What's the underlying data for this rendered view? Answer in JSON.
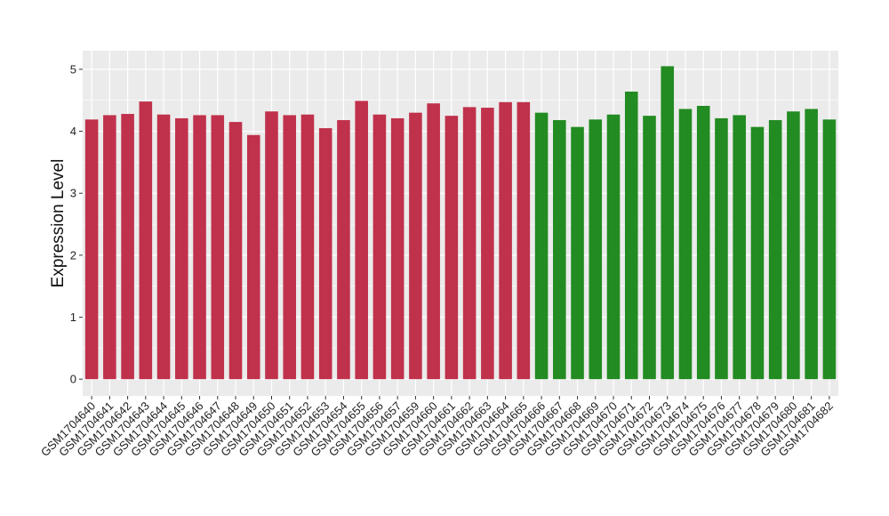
{
  "chart_data": {
    "type": "bar",
    "title": "",
    "xlabel": "",
    "ylabel": "Expression Level",
    "ylim": [
      -0.27,
      5.3
    ],
    "yticks": [
      0,
      1,
      2,
      3,
      4,
      5
    ],
    "grid": true,
    "legend": "none",
    "colors": {
      "panel": "#ebebeb",
      "grid": "#ffffff",
      "group_a": "#c0314b",
      "group_b": "#228b22"
    },
    "categories": [
      "GSM1704640",
      "GSM1704641",
      "GSM1704642",
      "GSM1704643",
      "GSM1704644",
      "GSM1704645",
      "GSM1704646",
      "GSM1704647",
      "GSM1704648",
      "GSM1704649",
      "GSM1704650",
      "GSM1704651",
      "GSM1704652",
      "GSM1704653",
      "GSM1704654",
      "GSM1704655",
      "GSM1704656",
      "GSM1704657",
      "GSM1704659",
      "GSM1704660",
      "GSM1704661",
      "GSM1704662",
      "GSM1704663",
      "GSM1704664",
      "GSM1704665",
      "GSM1704666",
      "GSM1704667",
      "GSM1704668",
      "GSM1704669",
      "GSM1704670",
      "GSM1704671",
      "GSM1704672",
      "GSM1704673",
      "GSM1704674",
      "GSM1704675",
      "GSM1704676",
      "GSM1704677",
      "GSM1704678",
      "GSM1704679",
      "GSM1704680",
      "GSM1704681",
      "GSM1704682"
    ],
    "values": [
      4.19,
      4.26,
      4.28,
      4.48,
      4.27,
      4.21,
      4.26,
      4.26,
      4.15,
      3.94,
      4.32,
      4.26,
      4.27,
      4.05,
      4.18,
      4.49,
      4.27,
      4.21,
      4.3,
      4.45,
      4.25,
      4.39,
      4.38,
      4.47,
      4.47,
      4.3,
      4.18,
      4.07,
      4.19,
      4.27,
      4.64,
      4.25,
      5.05,
      4.36,
      4.41,
      4.21,
      4.26,
      4.07,
      4.18,
      4.32,
      4.36,
      4.19
    ],
    "bar_colors": [
      "group_a",
      "group_a",
      "group_a",
      "group_a",
      "group_a",
      "group_a",
      "group_a",
      "group_a",
      "group_a",
      "group_a",
      "group_a",
      "group_a",
      "group_a",
      "group_a",
      "group_a",
      "group_a",
      "group_a",
      "group_a",
      "group_a",
      "group_a",
      "group_a",
      "group_a",
      "group_a",
      "group_a",
      "group_a",
      "group_b",
      "group_b",
      "group_b",
      "group_b",
      "group_b",
      "group_b",
      "group_b",
      "group_b",
      "group_b",
      "group_b",
      "group_b",
      "group_b",
      "group_b",
      "group_b",
      "group_b",
      "group_b",
      "group_b"
    ]
  }
}
